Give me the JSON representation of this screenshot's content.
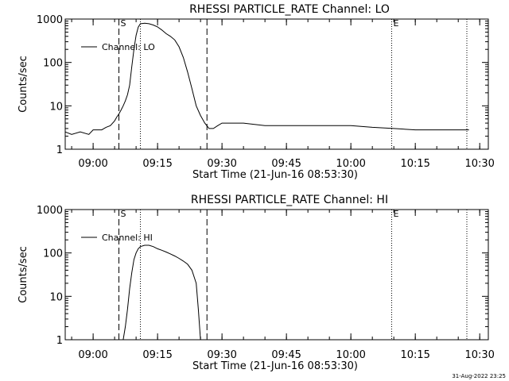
{
  "chart_data": [
    {
      "type": "line",
      "title": "RHESSI PARTICLE_RATE Channel: LO",
      "xlabel": "Start Time (21-Jun-16 08:53:30)",
      "ylabel": "Counts/sec",
      "yscale": "log",
      "ylim": [
        1,
        1000
      ],
      "xlim": [
        "08:53:30",
        "10:32:00"
      ],
      "x_tick_labels": [
        "09:00",
        "09:15",
        "09:30",
        "09:45",
        "10:00",
        "10:15",
        "10:30"
      ],
      "y_tick_labels": [
        "1",
        "10",
        "100",
        "1000"
      ],
      "y_tick_values": [
        1,
        10,
        100,
        1000
      ],
      "legend": {
        "position": "top-left",
        "entries": [
          "Channel: LO"
        ]
      },
      "markers": [
        {
          "label": "S",
          "time": "09:06:00",
          "style": "dashed"
        },
        {
          "label": "",
          "time": "09:11:00",
          "style": "dotted"
        },
        {
          "label": "",
          "time": "09:26:30",
          "style": "dashed"
        },
        {
          "label": "E",
          "time": "10:09:30",
          "style": "dotted"
        },
        {
          "label": "",
          "time": "10:27:00",
          "style": "dotted"
        }
      ],
      "series": [
        {
          "x": [
            "08:53:30",
            "08:55:00",
            "08:57:00",
            "08:59:00",
            "09:00:00",
            "09:01:00",
            "09:02:00",
            "09:03:00",
            "09:04:00",
            "09:05:00",
            "09:05:30",
            "09:06:00",
            "09:06:30",
            "09:07:00",
            "09:07:30",
            "09:08:00",
            "09:08:30",
            "09:09:00",
            "09:09:30",
            "09:10:00",
            "09:10:30",
            "09:11:00",
            "09:11:30",
            "09:12:00",
            "09:13:00",
            "09:14:00",
            "09:15:00",
            "09:16:00",
            "09:17:00",
            "09:18:00",
            "09:19:00",
            "09:20:00",
            "09:21:00",
            "09:22:00",
            "09:23:00",
            "09:24:00",
            "09:25:00",
            "09:26:00",
            "09:27:00",
            "09:28:00",
            "09:29:00",
            "09:30:00",
            "09:35:00",
            "09:40:00",
            "09:45:00",
            "09:50:00",
            "09:55:00",
            "10:00:00",
            "10:05:00",
            "10:10:00",
            "10:15:00",
            "10:20:00",
            "10:25:00",
            "10:27:30"
          ],
          "y": [
            2.5,
            2.2,
            2.5,
            2.2,
            2.8,
            2.8,
            2.8,
            3.2,
            3.5,
            4.5,
            5.5,
            6.5,
            8,
            10,
            13,
            18,
            30,
            80,
            200,
            420,
            650,
            780,
            790,
            800,
            780,
            730,
            660,
            560,
            460,
            400,
            330,
            230,
            130,
            60,
            25,
            10,
            6,
            4,
            3,
            3,
            3.5,
            4,
            4,
            3.5,
            3.5,
            3.5,
            3.5,
            3.5,
            3.2,
            3,
            2.8,
            2.8,
            2.8,
            2.8
          ]
        }
      ]
    },
    {
      "type": "line",
      "title": "RHESSI PARTICLE_RATE Channel: HI",
      "xlabel": "Start Time (21-Jun-16 08:53:30)",
      "ylabel": "Counts/sec",
      "yscale": "log",
      "ylim": [
        1,
        1000
      ],
      "xlim": [
        "08:53:30",
        "10:32:00"
      ],
      "x_tick_labels": [
        "09:00",
        "09:15",
        "09:30",
        "09:45",
        "10:00",
        "10:15",
        "10:30"
      ],
      "y_tick_labels": [
        "1",
        "10",
        "100",
        "1000"
      ],
      "y_tick_values": [
        1,
        10,
        100,
        1000
      ],
      "legend": {
        "position": "top-left",
        "entries": [
          "Channel: HI"
        ]
      },
      "markers": [
        {
          "label": "S",
          "time": "09:06:00",
          "style": "dashed"
        },
        {
          "label": "",
          "time": "09:11:00",
          "style": "dotted"
        },
        {
          "label": "",
          "time": "09:26:30",
          "style": "dashed"
        },
        {
          "label": "E",
          "time": "10:09:30",
          "style": "dotted"
        },
        {
          "label": "",
          "time": "10:27:00",
          "style": "dotted"
        }
      ],
      "series": [
        {
          "x": [
            "09:07:00",
            "09:07:30",
            "09:08:00",
            "09:08:30",
            "09:09:00",
            "09:09:30",
            "09:10:00",
            "09:10:30",
            "09:11:00",
            "09:12:00",
            "09:13:00",
            "09:14:00",
            "09:15:00",
            "09:16:00",
            "09:17:00",
            "09:18:00",
            "09:19:00",
            "09:20:00",
            "09:21:00",
            "09:22:00",
            "09:23:00",
            "09:24:00",
            "09:24:30",
            "09:25:00"
          ],
          "y": [
            1,
            2,
            5,
            15,
            35,
            70,
            100,
            125,
            140,
            150,
            150,
            140,
            125,
            115,
            105,
            95,
            85,
            75,
            65,
            55,
            40,
            20,
            5,
            1
          ]
        }
      ]
    }
  ],
  "footer": {
    "timestamp": "31-Aug-2022 23:25"
  }
}
